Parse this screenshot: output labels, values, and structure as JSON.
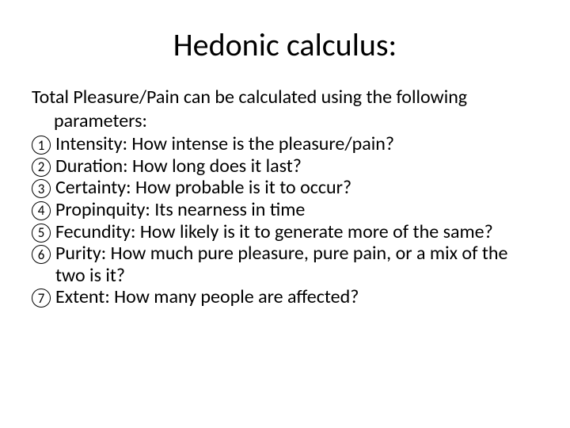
{
  "title": "Hedonic calculus:",
  "intro_line1": "Total Pleasure/Pain can be calculated using the following",
  "intro_line2": "parameters:",
  "items": [
    {
      "n": "1",
      "text": "Intensity: How intense is the pleasure/pain?"
    },
    {
      "n": "2",
      "text": "Duration: How long does it last?"
    },
    {
      "n": "3",
      "text": "Certainty: How probable is it to occur?"
    },
    {
      "n": "4",
      "text": "Propinquity: Its nearness in time"
    },
    {
      "n": "5",
      "text": "Fecundity: How likely is it to generate more of the same?"
    },
    {
      "n": "6",
      "text": "Purity: How much pure pleasure, pure pain, or a mix of the two is it?"
    },
    {
      "n": "7",
      "text": "Extent: How many people are affected?"
    }
  ],
  "colors": {
    "background": "#ffffff",
    "text": "#000000",
    "circle_border": "#000000"
  },
  "typography": {
    "title_fontsize": 40,
    "body_fontsize": 24,
    "number_fontsize": 17,
    "font_family": "Calibri"
  }
}
